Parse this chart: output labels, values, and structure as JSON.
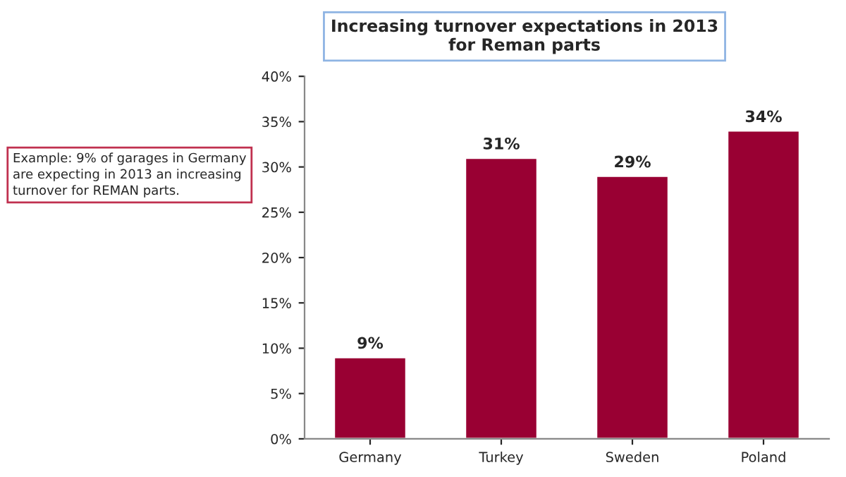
{
  "chart_data": {
    "type": "bar",
    "title": "Increasing turnover expectations in 2013\nfor Reman parts",
    "categories": [
      "Germany",
      "Turkey",
      "Sweden",
      "Poland"
    ],
    "values": [
      9,
      31,
      29,
      34
    ],
    "color": "#990033",
    "value_labels": [
      "9%",
      "31%",
      "29%",
      "34%"
    ],
    "ylim": [
      0,
      40
    ],
    "yticks": [
      {
        "value": 0,
        "label": "0%"
      },
      {
        "value": 5,
        "label": "5%"
      },
      {
        "value": 10,
        "label": "10%"
      },
      {
        "value": 15,
        "label": "15%"
      },
      {
        "value": 20,
        "label": "20%"
      },
      {
        "value": 25,
        "label": "25%"
      },
      {
        "value": 30,
        "label": "30%"
      },
      {
        "value": 35,
        "label": "35%"
      },
      {
        "value": 40,
        "label": "40%"
      }
    ],
    "grid": false,
    "annotations": [
      "Example: 9% of garages in Germany\nare expecting in 2013 an increasing\nturnover for REMAN parts."
    ]
  }
}
